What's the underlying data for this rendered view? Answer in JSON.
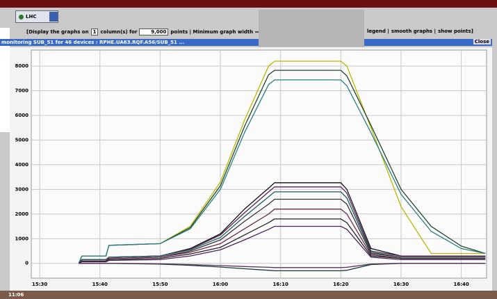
{
  "toolbar": {
    "selector": "LHC"
  },
  "options": {
    "prefix": "[Display the graphs on",
    "columns": "1",
    "columns_suffix": "column(s) for",
    "points": "9,000",
    "points_suffix": "points | Minimum graph width",
    "legend": "legend |",
    "smooth": "smooth graphs |",
    "show_points": "show points]"
  },
  "window": {
    "title": "monitoring SUB_51 for 46 devices : RPHE.UA63.RQF.A56/SUB_51 ...",
    "close": "Close"
  },
  "taskbar": {
    "clock": "11:06"
  },
  "chart_data": {
    "type": "line",
    "x": [
      936.5,
      937,
      941,
      941.5,
      950,
      955,
      960,
      964,
      968,
      969,
      980,
      981,
      985,
      990,
      995,
      1000,
      1004
    ],
    "series": [
      {
        "color": "#b8b800",
        "values": [
          0,
          300,
          300,
          730,
          800,
          1500,
          3300,
          5800,
          8000,
          8200,
          8200,
          8000,
          5500,
          2300,
          400,
          400,
          400
        ]
      },
      {
        "color": "#24452c",
        "values": [
          0,
          300,
          300,
          730,
          800,
          1450,
          3150,
          5550,
          7650,
          7830,
          7830,
          7600,
          5600,
          3000,
          1500,
          700,
          400
        ]
      },
      {
        "color": "#2a7f80",
        "values": [
          0,
          300,
          300,
          730,
          800,
          1400,
          3000,
          5300,
          7250,
          7440,
          7440,
          7200,
          5300,
          2800,
          1300,
          600,
          400
        ]
      },
      {
        "color": "#111111",
        "values": [
          0,
          150,
          150,
          250,
          300,
          600,
          1200,
          2200,
          3050,
          3270,
          3270,
          3000,
          600,
          300,
          300,
          300,
          300
        ]
      },
      {
        "color": "#552255",
        "values": [
          0,
          150,
          150,
          250,
          300,
          580,
          1150,
          2050,
          2900,
          3100,
          3100,
          2850,
          500,
          300,
          300,
          300,
          300
        ]
      },
      {
        "color": "#1d5a5a",
        "values": [
          0,
          150,
          150,
          250,
          300,
          550,
          1050,
          1900,
          2700,
          2900,
          2900,
          2650,
          450,
          250,
          250,
          250,
          250
        ]
      },
      {
        "color": "#333333",
        "values": [
          0,
          100,
          100,
          200,
          250,
          500,
          950,
          1700,
          2400,
          2600,
          2600,
          2400,
          400,
          250,
          250,
          250,
          250
        ]
      },
      {
        "color": "#6b2a4a",
        "values": [
          0,
          100,
          100,
          200,
          250,
          450,
          800,
          1400,
          2000,
          2200,
          2200,
          2000,
          350,
          200,
          200,
          200,
          200
        ]
      },
      {
        "color": "#222222",
        "values": [
          0,
          80,
          80,
          150,
          200,
          380,
          650,
          1150,
          1650,
          1800,
          1800,
          1650,
          300,
          200,
          200,
          200,
          200
        ]
      },
      {
        "color": "#4a2060",
        "values": [
          0,
          60,
          60,
          120,
          150,
          300,
          550,
          950,
          1380,
          1500,
          1500,
          1380,
          250,
          150,
          150,
          150,
          150
        ]
      },
      {
        "color": "#1a3a3a",
        "values": [
          0,
          0,
          0,
          0,
          -30,
          -80,
          -150,
          -220,
          -280,
          -300,
          -300,
          -280,
          -50,
          0,
          0,
          0,
          0
        ]
      },
      {
        "color": "#553355",
        "values": [
          0,
          0,
          0,
          0,
          -20,
          -50,
          -90,
          -130,
          -160,
          -170,
          -170,
          -160,
          -30,
          0,
          0,
          0,
          0
        ]
      }
    ],
    "xlim": [
      928.6,
      1004.2
    ],
    "xticks": [
      {
        "value": 930,
        "label": "15:30"
      },
      {
        "value": 940,
        "label": "15:40"
      },
      {
        "value": 950,
        "label": "15:50"
      },
      {
        "value": 960,
        "label": "16:00"
      },
      {
        "value": 970,
        "label": "16:10"
      },
      {
        "value": 980,
        "label": "16:20"
      },
      {
        "value": 990,
        "label": "16:30"
      },
      {
        "value": 1000,
        "label": "16:40"
      }
    ],
    "ylim": [
      -600,
      8650
    ],
    "yticks": [
      0,
      1000,
      2000,
      3000,
      4000,
      5000,
      6000,
      7000,
      8000
    ],
    "grid": true
  }
}
